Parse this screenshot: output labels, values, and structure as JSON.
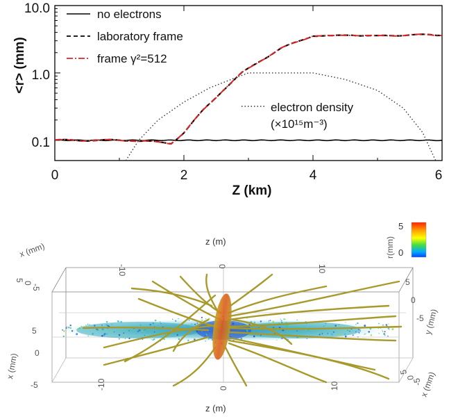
{
  "chart_data": [
    {
      "type": "line",
      "title": "",
      "xlabel": "Z (km)",
      "ylabel": "<r> (mm)",
      "xlim": [
        0,
        6
      ],
      "ylim": [
        0.05,
        10
      ],
      "y_scale": "log",
      "x_ticks": [
        "0",
        "2",
        "4",
        "6"
      ],
      "y_ticks": [
        "0.1",
        "1.0",
        "10.0"
      ],
      "grid": false,
      "legend_position": "top-left",
      "series": [
        {
          "name": "no electrons",
          "style": "solid",
          "color": "#000000",
          "x": [
            0,
            0.5,
            1.0,
            1.5,
            2.0,
            2.5,
            3.0,
            3.5,
            4.0,
            4.5,
            5.0,
            5.5,
            6.0
          ],
          "y": [
            0.1,
            0.1,
            0.1,
            0.1,
            0.1,
            0.1,
            0.1,
            0.1,
            0.1,
            0.1,
            0.1,
            0.1,
            0.1
          ]
        },
        {
          "name": "laboratory frame",
          "style": "dashed",
          "color": "#000000",
          "x": [
            0,
            0.3,
            0.6,
            0.9,
            1.2,
            1.5,
            1.8,
            2.0,
            2.3,
            2.6,
            2.9,
            3.2,
            3.5,
            3.8,
            4.0,
            4.3,
            4.6,
            5.0,
            5.5,
            6.0
          ],
          "y": [
            0.1,
            0.1,
            0.1,
            0.1,
            0.1,
            0.095,
            0.09,
            0.13,
            0.28,
            0.55,
            1.0,
            1.55,
            2.3,
            3.0,
            3.6,
            3.5,
            3.7,
            3.5,
            3.7,
            3.6
          ]
        },
        {
          "name": "frame γ²=512",
          "style": "dash-dot",
          "color": "#d62728",
          "x": [
            0,
            0.3,
            0.6,
            0.9,
            1.2,
            1.5,
            1.8,
            2.0,
            2.3,
            2.6,
            2.9,
            3.2,
            3.5,
            3.8,
            4.0,
            4.3,
            4.6,
            5.0,
            5.5,
            6.0
          ],
          "y": [
            0.1,
            0.1,
            0.1,
            0.1,
            0.1,
            0.095,
            0.09,
            0.13,
            0.28,
            0.55,
            1.0,
            1.55,
            2.3,
            3.0,
            3.6,
            3.5,
            3.7,
            3.5,
            3.7,
            3.6
          ]
        },
        {
          "name": "electron density (×10¹⁵m⁻³)",
          "style": "dotted",
          "color": "#000000",
          "x": [
            1.1,
            1.3,
            1.6,
            2.0,
            2.4,
            2.8,
            3.0,
            3.5,
            4.0,
            4.5,
            5.0,
            5.4,
            5.7,
            5.9
          ],
          "y": [
            0.05,
            0.1,
            0.2,
            0.37,
            0.6,
            0.85,
            1.0,
            1.0,
            1.0,
            0.8,
            0.55,
            0.3,
            0.13,
            0.05
          ]
        }
      ],
      "legend": {
        "entries": [
          "no electrons",
          "laboratory frame",
          "frame γ²=512"
        ],
        "density_label_1": "electron density",
        "density_label_2": "(×10¹⁵m⁻³)"
      }
    },
    {
      "type": "3d-render",
      "title": "",
      "axis_labels": {
        "z_top": "z (m)",
        "z_bottom": "z (m)",
        "x_left_top": "x (mm)",
        "y_right": "y (mm)",
        "x_left_bottom": "x (mm)",
        "x_right_bottom": "x (mm)"
      },
      "z_ticks": [
        "-10",
        "0",
        "10"
      ],
      "left_ticks": [
        "5",
        "0",
        "-5"
      ],
      "left_ticks_top": [
        "5",
        "0",
        "-5"
      ],
      "right_ticks": [
        "5",
        "0",
        "-5"
      ],
      "right_ticks_bottom": [
        "5",
        "0",
        "-5"
      ],
      "colorbar": {
        "label": "r(mm)",
        "max_label": "5",
        "min_label": "0",
        "colors": [
          "#ff2200",
          "#ffaa00",
          "#ffff00",
          "#44dd44",
          "#00aaff",
          "#0044ff"
        ]
      }
    }
  ]
}
